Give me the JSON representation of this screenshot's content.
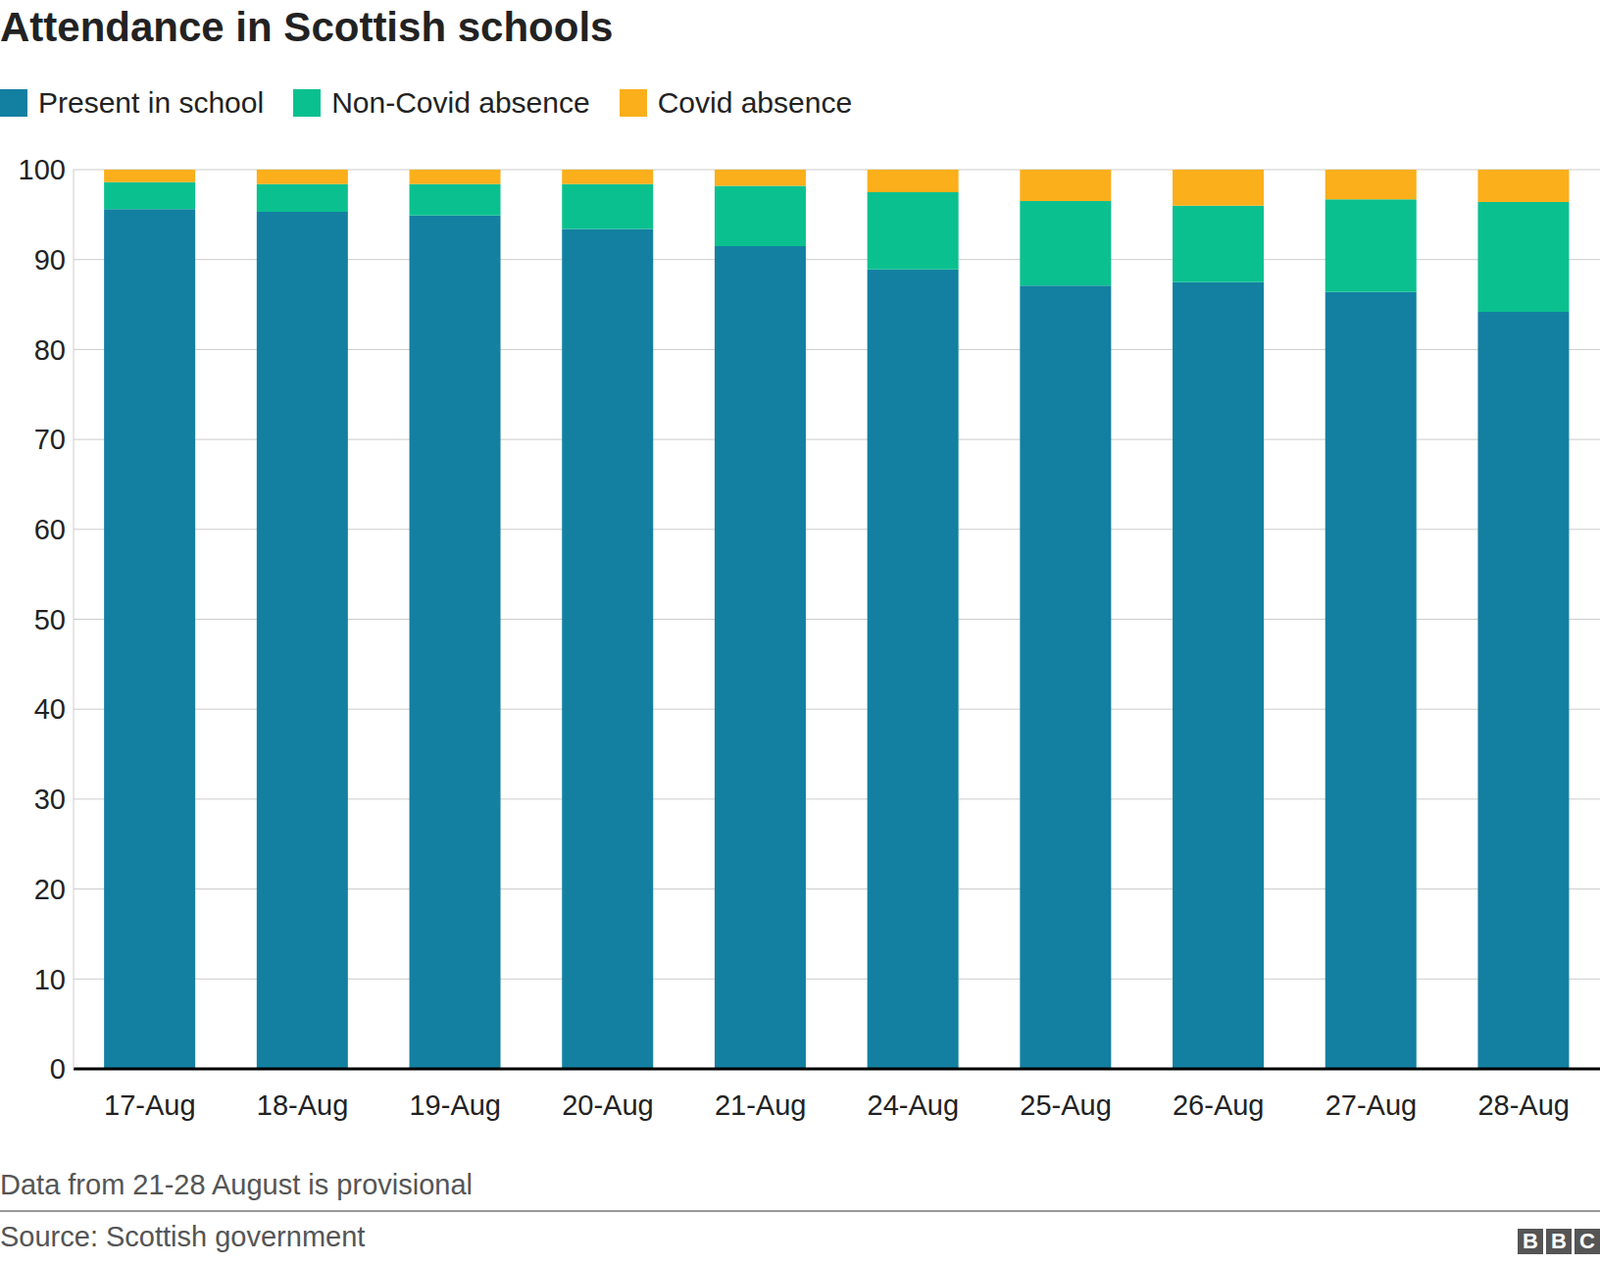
{
  "chart_data": {
    "type": "bar",
    "title": "Attendance in Scottish schools",
    "footnote": "Data from 21-28 August is provisional",
    "source": "Source: Scottish government",
    "logo": "BBC",
    "categories": [
      "17-Aug",
      "18-Aug",
      "19-Aug",
      "20-Aug",
      "21-Aug",
      "24-Aug",
      "25-Aug",
      "26-Aug",
      "27-Aug",
      "28-Aug"
    ],
    "series": [
      {
        "name": "Present in school",
        "color": "#1380a1",
        "values": [
          95.6,
          95.3,
          94.9,
          93.4,
          91.5,
          88.9,
          87.1,
          87.5,
          86.4,
          84.2
        ]
      },
      {
        "name": "Non-Covid absence",
        "color": "#0bc08f",
        "values": [
          3.0,
          3.1,
          3.5,
          5.0,
          6.7,
          8.6,
          9.4,
          8.5,
          10.3,
          12.2
        ]
      },
      {
        "name": "Covid absence",
        "color": "#fbaf1b",
        "values": [
          1.4,
          1.6,
          1.6,
          1.6,
          1.8,
          2.5,
          3.5,
          4.0,
          3.3,
          3.6
        ]
      }
    ],
    "ylim": [
      0,
      100
    ],
    "yticks": [
      0,
      10,
      20,
      30,
      40,
      50,
      60,
      70,
      80,
      90,
      100
    ],
    "grid": true,
    "stacked": true,
    "legend": "top-left"
  }
}
